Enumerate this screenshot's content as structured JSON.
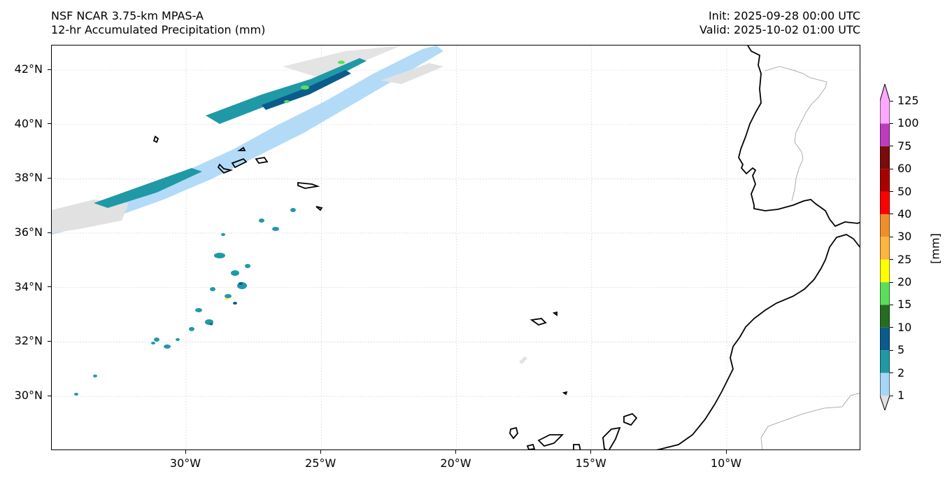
{
  "header": {
    "title_line1": "NSF NCAR 3.75-km MPAS-A",
    "title_line2": "12-hr Accumulated Precipitation (mm)",
    "init": "Init: 2025-09-28 00:00 UTC",
    "valid": "Valid: 2025-10-02 01:00 UTC"
  },
  "map": {
    "extent_lon": [
      -35,
      -5
    ],
    "extent_lat": [
      28,
      43
    ],
    "lat_ticks": [
      {
        "value": 30,
        "label": "30°N"
      },
      {
        "value": 32,
        "label": "32°N"
      },
      {
        "value": 34,
        "label": "34°N"
      },
      {
        "value": 36,
        "label": "36°N"
      },
      {
        "value": 38,
        "label": "38°N"
      },
      {
        "value": 40,
        "label": "40°N"
      },
      {
        "value": 42,
        "label": "42°N"
      }
    ],
    "lon_ticks": [
      {
        "value": -30,
        "label": "30°W"
      },
      {
        "value": -25,
        "label": "25°W"
      },
      {
        "value": -20,
        "label": "20°W"
      },
      {
        "value": -15,
        "label": "15°W"
      },
      {
        "value": -10,
        "label": "10°W"
      }
    ],
    "gridlines": true,
    "coastline_color": "#000000",
    "border_color": "#999999"
  },
  "colorbar": {
    "unit_label": "[mm]",
    "levels": [
      "1",
      "2",
      "5",
      "10",
      "15",
      "20",
      "25",
      "30",
      "40",
      "50",
      "60",
      "75",
      "100",
      "125"
    ],
    "colors": [
      "#e1e1e1",
      "#a6d5f7",
      "#2099a6",
      "#0a5c8c",
      "#256e21",
      "#5ade5c",
      "#ffff00",
      "#ffb43c",
      "#ef8f2a",
      "#ff0000",
      "#aa0000",
      "#7c0b0b",
      "#bc3cbd",
      "#ffa8ff"
    ]
  }
}
